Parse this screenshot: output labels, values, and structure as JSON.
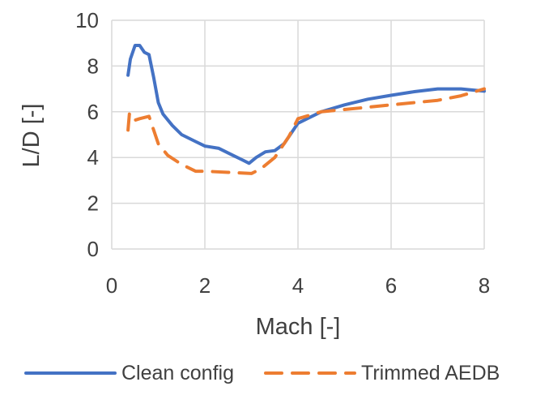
{
  "chart_data": {
    "type": "line",
    "title": "",
    "xlabel": "Mach [-]",
    "ylabel": "L/D [-]",
    "xlim": [
      0,
      8
    ],
    "ylim": [
      0,
      10
    ],
    "xticks": [
      0,
      2,
      4,
      6,
      8
    ],
    "yticks": [
      0,
      2,
      4,
      6,
      8,
      10
    ],
    "grid": true,
    "legend_position": "bottom",
    "series": [
      {
        "name": "Clean config",
        "color": "#4472c4",
        "dash": "solid",
        "points": [
          [
            0.35,
            7.6
          ],
          [
            0.4,
            8.3
          ],
          [
            0.5,
            8.9
          ],
          [
            0.6,
            8.9
          ],
          [
            0.7,
            8.6
          ],
          [
            0.8,
            8.5
          ],
          [
            0.9,
            7.5
          ],
          [
            1.0,
            6.4
          ],
          [
            1.1,
            5.9
          ],
          [
            1.3,
            5.4
          ],
          [
            1.5,
            5.0
          ],
          [
            1.8,
            4.7
          ],
          [
            2.0,
            4.5
          ],
          [
            2.3,
            4.4
          ],
          [
            2.6,
            4.1
          ],
          [
            2.8,
            3.9
          ],
          [
            2.95,
            3.75
          ],
          [
            3.1,
            4.0
          ],
          [
            3.3,
            4.25
          ],
          [
            3.5,
            4.3
          ],
          [
            3.7,
            4.6
          ],
          [
            4.0,
            5.5
          ],
          [
            4.5,
            6.0
          ],
          [
            5.0,
            6.3
          ],
          [
            5.5,
            6.55
          ],
          [
            6.0,
            6.72
          ],
          [
            6.5,
            6.88
          ],
          [
            7.0,
            7.0
          ],
          [
            7.5,
            7.0
          ],
          [
            8.0,
            6.9
          ]
        ]
      },
      {
        "name": "Trimmed AEDB",
        "color": "#ed7d31",
        "dash": "dashed",
        "points": [
          [
            0.35,
            5.2
          ],
          [
            0.38,
            5.9
          ],
          [
            0.45,
            5.6
          ],
          [
            0.6,
            5.7
          ],
          [
            0.8,
            5.8
          ],
          [
            0.9,
            5.2
          ],
          [
            1.0,
            4.6
          ],
          [
            1.2,
            4.1
          ],
          [
            1.5,
            3.7
          ],
          [
            1.8,
            3.4
          ],
          [
            2.0,
            3.4
          ],
          [
            2.5,
            3.35
          ],
          [
            3.0,
            3.3
          ],
          [
            3.2,
            3.5
          ],
          [
            3.5,
            4.0
          ],
          [
            3.8,
            4.9
          ],
          [
            4.0,
            5.7
          ],
          [
            4.5,
            6.0
          ],
          [
            5.0,
            6.1
          ],
          [
            5.5,
            6.2
          ],
          [
            6.0,
            6.3
          ],
          [
            6.5,
            6.4
          ],
          [
            7.0,
            6.5
          ],
          [
            7.5,
            6.7
          ],
          [
            8.0,
            7.0
          ]
        ]
      }
    ]
  }
}
